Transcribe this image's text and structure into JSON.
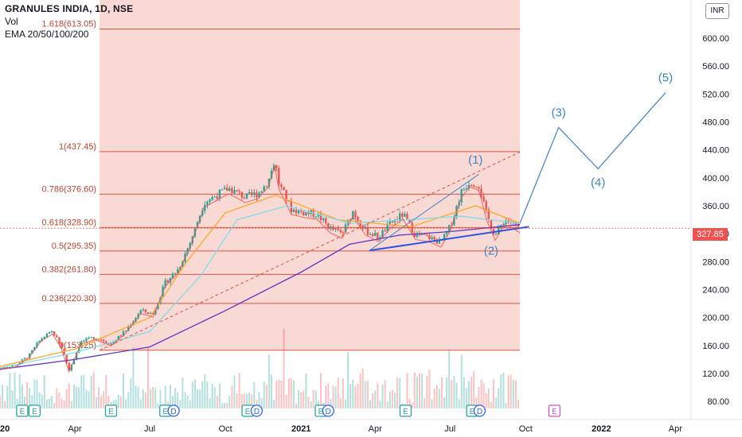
{
  "header": {
    "title": "GRANULES INDIA, 1D, NSE",
    "volume_label": "Vol",
    "ema_label": "EMA 20/50/100/200"
  },
  "currency_badge": "INR",
  "last_price_label": "327.85",
  "colors": {
    "fib_line": "#e0523f",
    "fib_zone": "#f8d2cd",
    "fib_label": "#b7442f",
    "projection": "#3c85c6",
    "trendline": "#2a55e5",
    "ema20": "#ef5350",
    "ema50": "#ffa726",
    "ema100": "#80deea",
    "ema200": "#5c35c9",
    "up_candle": "#26a69a",
    "down_candle": "#ef5350",
    "last_price": "#ef5350",
    "event_earnings": "#26a69a",
    "event_future": "#d44fc0",
    "event_dividend": "#2962ff"
  },
  "chart_data": {
    "type": "candlestick",
    "symbol": "GRANULES INDIA",
    "interval": "1D",
    "exchange": "NSE",
    "y_axis": {
      "range": [
        70,
        650
      ],
      "ticks": [
        80,
        120,
        160,
        200,
        240,
        280,
        320,
        360,
        400,
        440,
        480,
        520,
        560,
        600
      ],
      "tick_labels": [
        "80.00",
        "120.00",
        "160.00",
        "200.00",
        "240.00",
        "280.00",
        "320.00",
        "360.00",
        "400.00",
        "440.00",
        "480.00",
        "520.00",
        "560.00",
        "600.00"
      ]
    },
    "x_axis": {
      "range": [
        "2020-01-01",
        "2022-04-20"
      ],
      "ticks": [
        "2020-01-01",
        "2020-04-01",
        "2020-07-01",
        "2020-10-01",
        "2021-01-01",
        "2021-04-01",
        "2021-07-01",
        "2021-10-01",
        "2022-01-01",
        "2022-04-01"
      ],
      "tick_labels": [
        "2020",
        "Apr",
        "Jul",
        "Oct",
        "2021",
        "Apr",
        "Jul",
        "Oct",
        "2022",
        "Apr"
      ]
    },
    "fibonacci": {
      "start": "2020-05-01",
      "end": "2021-09-24",
      "levels": [
        {
          "label": "1.618(613.05)",
          "value": 613.05
        },
        {
          "label": "1(437.45)",
          "value": 437.45
        },
        {
          "label": "0.786(376.60)",
          "value": 376.6
        },
        {
          "label": "0.618(328.90)",
          "value": 328.9
        },
        {
          "label": "0.5(295.35)",
          "value": 295.35
        },
        {
          "label": "0.382(261.80)",
          "value": 261.8
        },
        {
          "label": "0.236(220.30)",
          "value": 220.3
        },
        {
          "label": "0(153.25)",
          "value": 153.25
        }
      ]
    },
    "price_path": [
      [
        "2020-01-01",
        128
      ],
      [
        "2020-01-20",
        132
      ],
      [
        "2020-02-05",
        145
      ],
      [
        "2020-02-20",
        170
      ],
      [
        "2020-03-05",
        180
      ],
      [
        "2020-03-15",
        160
      ],
      [
        "2020-03-25",
        125
      ],
      [
        "2020-04-08",
        165
      ],
      [
        "2020-04-25",
        172
      ],
      [
        "2020-05-15",
        163
      ],
      [
        "2020-06-01",
        180
      ],
      [
        "2020-06-20",
        210
      ],
      [
        "2020-07-05",
        205
      ],
      [
        "2020-07-20",
        250
      ],
      [
        "2020-08-05",
        270
      ],
      [
        "2020-08-20",
        310
      ],
      [
        "2020-09-05",
        365
      ],
      [
        "2020-09-20",
        375
      ],
      [
        "2020-10-05",
        385
      ],
      [
        "2020-10-25",
        372
      ],
      [
        "2020-11-10",
        378
      ],
      [
        "2020-11-22",
        395
      ],
      [
        "2020-11-30",
        425
      ],
      [
        "2020-12-05",
        392
      ],
      [
        "2020-12-20",
        355
      ],
      [
        "2021-01-05",
        350
      ],
      [
        "2021-01-20",
        348
      ],
      [
        "2021-02-05",
        328
      ],
      [
        "2021-02-20",
        320
      ],
      [
        "2021-03-05",
        352
      ],
      [
        "2021-03-20",
        325
      ],
      [
        "2021-04-05",
        315
      ],
      [
        "2021-04-20",
        335
      ],
      [
        "2021-05-05",
        348
      ],
      [
        "2021-05-20",
        318
      ],
      [
        "2021-06-05",
        315
      ],
      [
        "2021-06-20",
        307
      ],
      [
        "2021-07-01",
        330
      ],
      [
        "2021-07-15",
        380
      ],
      [
        "2021-07-25",
        395
      ],
      [
        "2021-08-05",
        390
      ],
      [
        "2021-08-15",
        345
      ],
      [
        "2021-08-25",
        317
      ],
      [
        "2021-09-05",
        340
      ],
      [
        "2021-09-15",
        335
      ],
      [
        "2021-09-24",
        327.85
      ]
    ],
    "ema200_path": [
      [
        "2020-01-01",
        126
      ],
      [
        "2020-04-01",
        140
      ],
      [
        "2020-07-01",
        158
      ],
      [
        "2020-10-01",
        210
      ],
      [
        "2021-01-01",
        265
      ],
      [
        "2021-03-01",
        305
      ],
      [
        "2021-05-01",
        318
      ],
      [
        "2021-07-01",
        323
      ],
      [
        "2021-09-24",
        333
      ]
    ],
    "ema100_path": [
      [
        "2020-01-01",
        128
      ],
      [
        "2020-04-01",
        150
      ],
      [
        "2020-07-01",
        180
      ],
      [
        "2020-09-01",
        260
      ],
      [
        "2020-10-15",
        340
      ],
      [
        "2020-12-15",
        360
      ],
      [
        "2021-03-01",
        335
      ],
      [
        "2021-07-15",
        345
      ],
      [
        "2021-09-24",
        335
      ]
    ],
    "ema50_path": [
      [
        "2020-01-01",
        130
      ],
      [
        "2020-04-01",
        155
      ],
      [
        "2020-07-01",
        200
      ],
      [
        "2020-08-15",
        280
      ],
      [
        "2020-10-01",
        350
      ],
      [
        "2020-12-01",
        375
      ],
      [
        "2021-02-15",
        340
      ],
      [
        "2021-05-15",
        330
      ],
      [
        "2021-08-01",
        360
      ],
      [
        "2021-09-24",
        335
      ]
    ],
    "elliott_projection": {
      "points": [
        {
          "date": "2021-09-24",
          "value": 335
        },
        {
          "date": "2021-11-10",
          "value": 472,
          "label": "(3)"
        },
        {
          "date": "2021-12-28",
          "value": 413,
          "label": "(4)"
        },
        {
          "date": "2022-03-20",
          "value": 522,
          "label": "(5)"
        }
      ]
    },
    "wave_labels": [
      {
        "label": "(1)",
        "date": "2021-08-01",
        "value": 420
      },
      {
        "label": "(2)",
        "date": "2021-08-20",
        "value": 290
      }
    ],
    "trendlines": [
      {
        "style": "solid-blue",
        "from": {
          "date": "2021-03-25",
          "value": 296
        },
        "to": {
          "date": "2021-10-05",
          "value": 330
        }
      },
      {
        "style": "solid-thin",
        "from": {
          "date": "2021-03-25",
          "value": 296
        },
        "to": {
          "date": "2021-08-05",
          "value": 405
        }
      },
      {
        "style": "dashed",
        "from": {
          "date": "2020-05-01",
          "value": 153
        },
        "to": {
          "date": "2021-09-24",
          "value": 437
        }
      }
    ],
    "events": [
      {
        "date": "2020-01-28",
        "kind": "E"
      },
      {
        "date": "2020-02-12",
        "kind": "E"
      },
      {
        "date": "2020-05-15",
        "kind": "E"
      },
      {
        "date": "2020-07-20",
        "kind": "E"
      },
      {
        "date": "2020-07-30",
        "kind": "D"
      },
      {
        "date": "2020-10-28",
        "kind": "E"
      },
      {
        "date": "2020-11-08",
        "kind": "D"
      },
      {
        "date": "2021-01-25",
        "kind": "E"
      },
      {
        "date": "2021-02-03",
        "kind": "D"
      },
      {
        "date": "2021-05-08",
        "kind": "E"
      },
      {
        "date": "2021-07-28",
        "kind": "E"
      },
      {
        "date": "2021-08-06",
        "kind": "D"
      },
      {
        "date": "2021-11-05",
        "kind": "E",
        "future": true
      }
    ],
    "last_price": 327.85
  }
}
